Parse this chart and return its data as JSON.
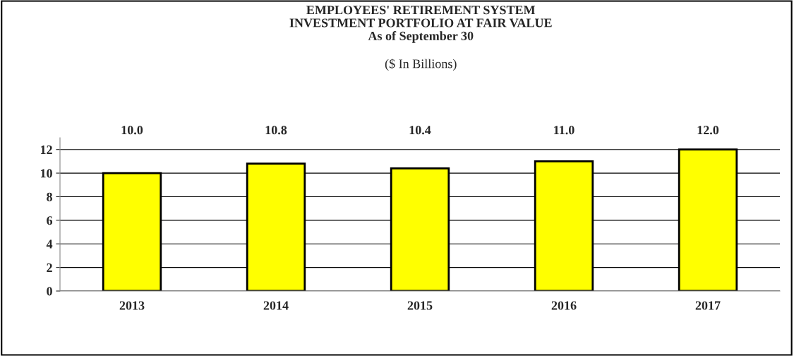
{
  "chart_data": {
    "type": "bar",
    "title": "EMPLOYEES' RETIREMENT SYSTEM\nINVESTMENT PORTFOLIO AT FAIR VALUE\nAs of September 30",
    "subtitle": "($ In Billions)",
    "categories": [
      "2013",
      "2014",
      "2015",
      "2016",
      "2017"
    ],
    "values": [
      10.0,
      10.8,
      10.4,
      11.0,
      12.0
    ],
    "color": "#ffff00",
    "ylim": [
      0,
      13
    ],
    "yticks": [
      0,
      2,
      4,
      6,
      8,
      10,
      12
    ],
    "value_labels": [
      "10.0",
      "10.8",
      "10.4",
      "11.0",
      "12.0"
    ],
    "grid": "y",
    "legend": false
  }
}
